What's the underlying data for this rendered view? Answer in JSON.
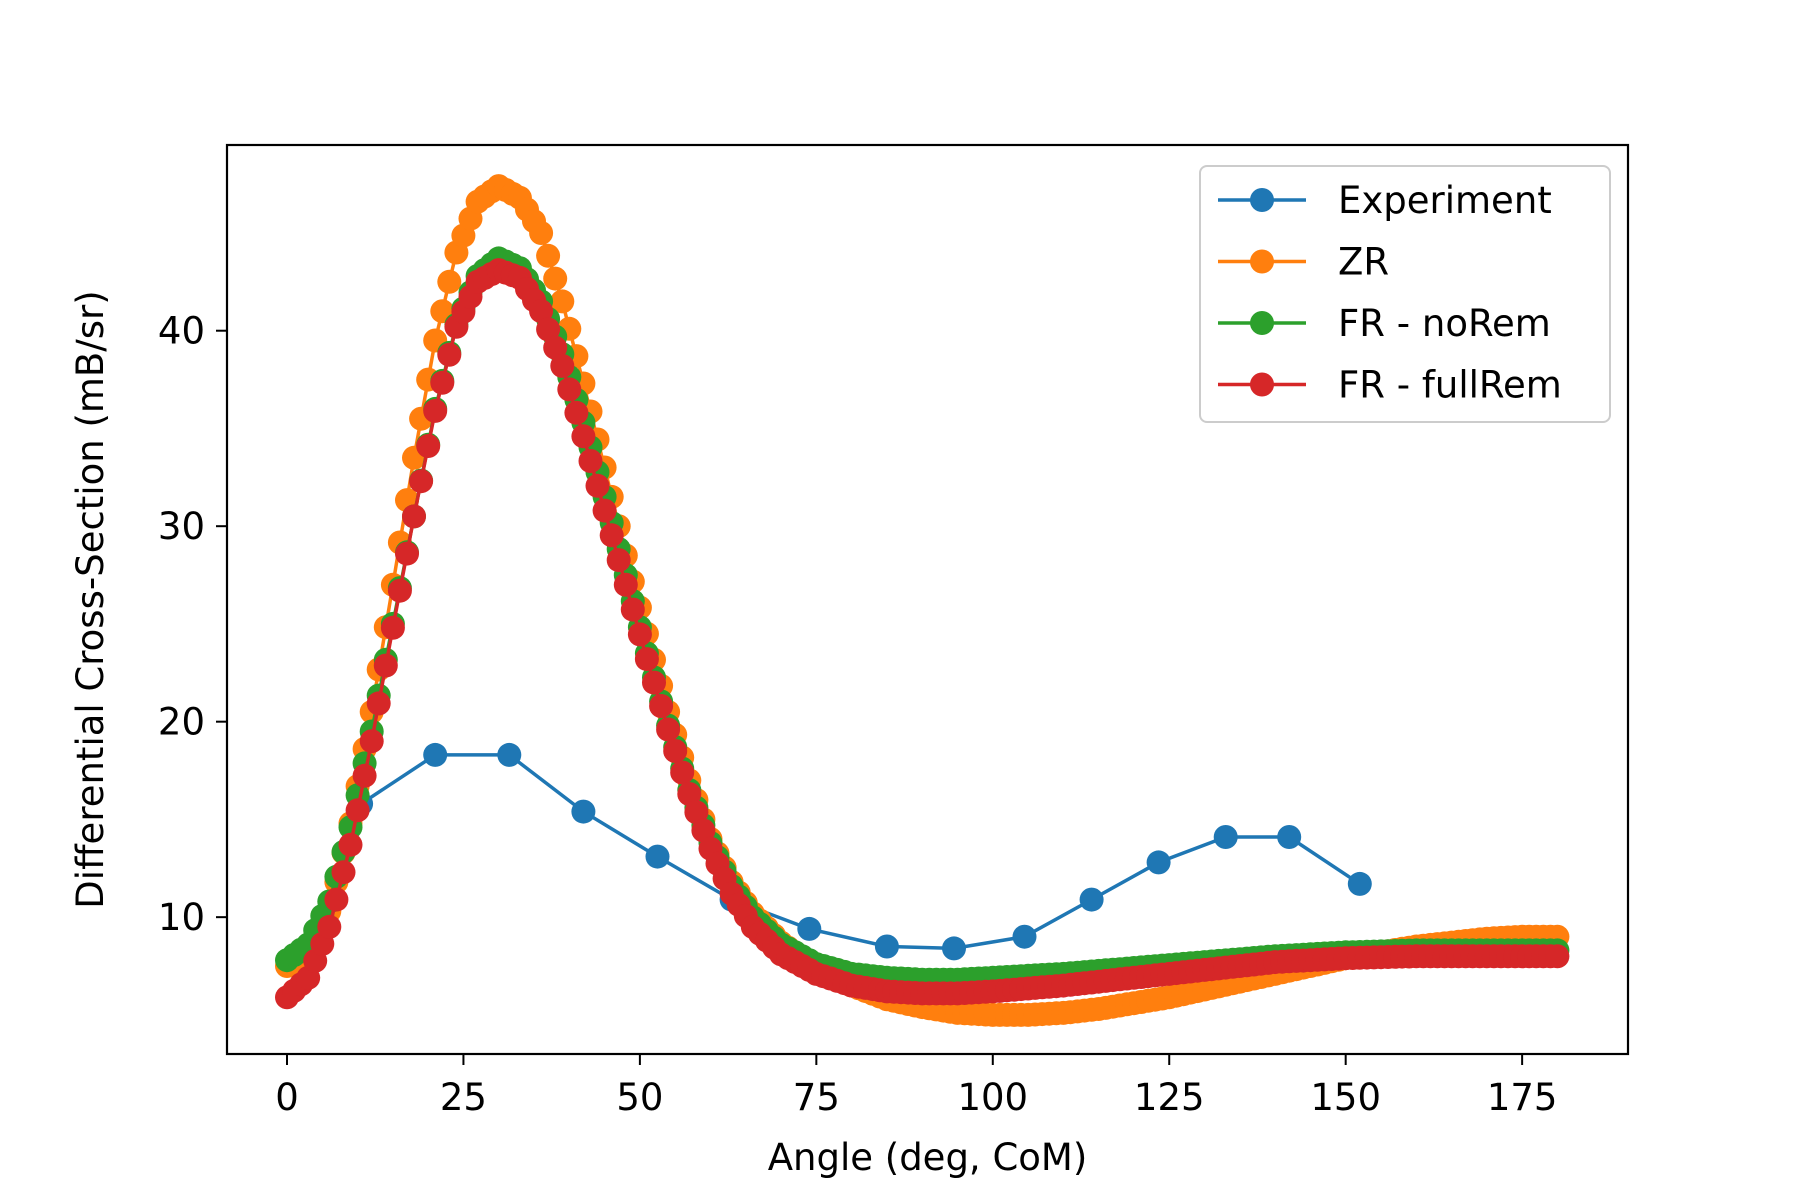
{
  "chart_data": {
    "type": "line",
    "title": "",
    "xlabel": "Angle (deg, CoM)",
    "ylabel": "Differential Cross-Section (mB/sr)",
    "xlim": [
      -8.5,
      190
    ],
    "ylim": [
      3.0,
      49.5
    ],
    "xticks": [
      0,
      25,
      50,
      75,
      100,
      125,
      150,
      175
    ],
    "yticks": [
      10,
      20,
      30,
      40
    ],
    "grid": false,
    "legend_position": "upper-right",
    "series": [
      {
        "name": "Experiment",
        "color": "#1f77b4",
        "marker_size": 12,
        "line_width": 3.5,
        "points": [
          [
            10.5,
            15.8
          ],
          [
            21.0,
            18.3
          ],
          [
            31.5,
            18.3
          ],
          [
            42.0,
            15.4
          ],
          [
            52.5,
            13.1
          ],
          [
            63.0,
            10.9
          ],
          [
            74.0,
            9.4
          ],
          [
            85.0,
            8.5
          ],
          [
            94.5,
            8.4
          ],
          [
            104.5,
            9.0
          ],
          [
            114.0,
            10.9
          ],
          [
            123.5,
            12.8
          ],
          [
            133.0,
            14.1
          ],
          [
            142.0,
            14.1
          ],
          [
            152.0,
            11.7
          ]
        ]
      },
      {
        "name": "ZR",
        "color": "#ff7f0e",
        "marker_size": 12,
        "line_width": 3.5,
        "curve": {
          "x_range": [
            0,
            180
          ],
          "step": 1,
          "knots": [
            [
              0,
              7.5
            ],
            [
              3,
              8.0
            ],
            [
              6,
              10.3
            ],
            [
              9,
              14.8
            ],
            [
              12,
              20.5
            ],
            [
              15,
              27.0
            ],
            [
              18,
              33.5
            ],
            [
              21,
              39.5
            ],
            [
              24,
              44.0
            ],
            [
              27,
              46.6
            ],
            [
              30,
              47.4
            ],
            [
              33,
              46.8
            ],
            [
              36,
              45.0
            ],
            [
              39,
              41.5
            ],
            [
              42,
              37.3
            ],
            [
              45,
              33.0
            ],
            [
              48,
              28.5
            ],
            [
              51,
              24.5
            ],
            [
              54,
              20.5
            ],
            [
              57,
              17.0
            ],
            [
              60,
              14.0
            ],
            [
              63,
              11.8
            ],
            [
              66,
              10.2
            ],
            [
              70,
              8.7
            ],
            [
              75,
              7.4
            ],
            [
              80,
              6.5
            ],
            [
              85,
              5.8
            ],
            [
              90,
              5.4
            ],
            [
              95,
              5.1
            ],
            [
              100,
              5.0
            ],
            [
              105,
              5.0
            ],
            [
              110,
              5.1
            ],
            [
              115,
              5.3
            ],
            [
              120,
              5.6
            ],
            [
              125,
              5.9
            ],
            [
              130,
              6.3
            ],
            [
              135,
              6.7
            ],
            [
              140,
              7.1
            ],
            [
              145,
              7.5
            ],
            [
              150,
              7.9
            ],
            [
              155,
              8.2
            ],
            [
              160,
              8.5
            ],
            [
              165,
              8.7
            ],
            [
              170,
              8.9
            ],
            [
              175,
              9.0
            ],
            [
              180,
              9.0
            ]
          ]
        }
      },
      {
        "name": "FR - noRem",
        "color": "#2ca02c",
        "marker_size": 12,
        "line_width": 3.5,
        "curve": {
          "x_range": [
            0,
            180
          ],
          "step": 1,
          "knots": [
            [
              0,
              7.8
            ],
            [
              3,
              8.6
            ],
            [
              6,
              10.8
            ],
            [
              9,
              14.6
            ],
            [
              12,
              19.5
            ],
            [
              15,
              25.0
            ],
            [
              18,
              30.5
            ],
            [
              21,
              36.0
            ],
            [
              24,
              40.3
            ],
            [
              27,
              42.8
            ],
            [
              30,
              43.7
            ],
            [
              33,
              43.2
            ],
            [
              36,
              41.5
            ],
            [
              39,
              38.8
            ],
            [
              42,
              35.3
            ],
            [
              45,
              31.5
            ],
            [
              48,
              27.5
            ],
            [
              51,
              23.5
            ],
            [
              54,
              19.8
            ],
            [
              57,
              16.5
            ],
            [
              60,
              13.8
            ],
            [
              63,
              11.6
            ],
            [
              66,
              10.0
            ],
            [
              70,
              8.6
            ],
            [
              75,
              7.6
            ],
            [
              80,
              7.1
            ],
            [
              85,
              6.9
            ],
            [
              90,
              6.8
            ],
            [
              95,
              6.8
            ],
            [
              100,
              6.9
            ],
            [
              110,
              7.1
            ],
            [
              120,
              7.4
            ],
            [
              130,
              7.7
            ],
            [
              140,
              8.0
            ],
            [
              150,
              8.2
            ],
            [
              160,
              8.3
            ],
            [
              170,
              8.3
            ],
            [
              180,
              8.3
            ]
          ]
        }
      },
      {
        "name": "FR - fullRem",
        "color": "#d62728",
        "marker_size": 12,
        "line_width": 3.5,
        "curve": {
          "x_range": [
            0,
            180
          ],
          "step": 1,
          "knots": [
            [
              0,
              5.9
            ],
            [
              3,
              6.9
            ],
            [
              6,
              9.5
            ],
            [
              9,
              13.7
            ],
            [
              12,
              19.0
            ],
            [
              15,
              24.8
            ],
            [
              18,
              30.5
            ],
            [
              21,
              35.9
            ],
            [
              24,
              40.2
            ],
            [
              27,
              42.5
            ],
            [
              30,
              43.1
            ],
            [
              33,
              42.7
            ],
            [
              36,
              41.0
            ],
            [
              39,
              38.2
            ],
            [
              42,
              34.6
            ],
            [
              45,
              30.8
            ],
            [
              48,
              27.0
            ],
            [
              51,
              23.2
            ],
            [
              54,
              19.6
            ],
            [
              57,
              16.3
            ],
            [
              60,
              13.5
            ],
            [
              63,
              11.2
            ],
            [
              66,
              9.5
            ],
            [
              70,
              8.1
            ],
            [
              75,
              7.1
            ],
            [
              80,
              6.5
            ],
            [
              85,
              6.2
            ],
            [
              90,
              6.1
            ],
            [
              95,
              6.1
            ],
            [
              100,
              6.2
            ],
            [
              110,
              6.5
            ],
            [
              120,
              6.9
            ],
            [
              130,
              7.3
            ],
            [
              140,
              7.7
            ],
            [
              150,
              7.9
            ],
            [
              160,
              8.0
            ],
            [
              170,
              8.0
            ],
            [
              180,
              8.0
            ]
          ]
        }
      }
    ]
  }
}
